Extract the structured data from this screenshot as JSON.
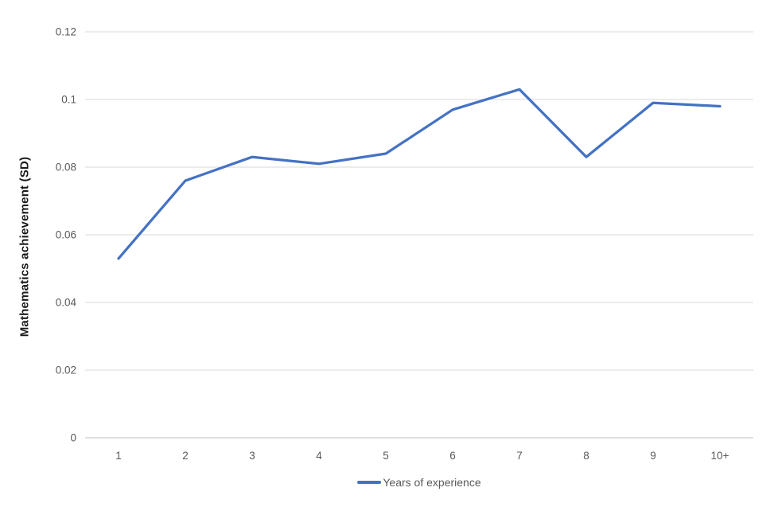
{
  "chart_data": {
    "type": "line",
    "categories": [
      "1",
      "2",
      "3",
      "4",
      "5",
      "6",
      "7",
      "8",
      "9",
      "10+"
    ],
    "series": [
      {
        "name": "Years of experience",
        "values": [
          0.053,
          0.076,
          0.083,
          0.081,
          0.084,
          0.097,
          0.103,
          0.083,
          0.099,
          0.098
        ],
        "color": "#4472C4"
      }
    ],
    "title": "",
    "xlabel": "",
    "ylabel": "Mathematics achievement (SD)",
    "ylim": [
      0,
      0.12
    ],
    "ytick_step": 0.02,
    "yticks": [
      "0",
      "0.02",
      "0.04",
      "0.06",
      "0.08",
      "0.1",
      "0.12"
    ],
    "grid": true,
    "legend_position": "bottom-center"
  },
  "colors": {
    "line": "#4472C4",
    "gridline": "#d9d9d9",
    "axis_line": "#bfbfbf",
    "tick_text": "#595959",
    "ylabel_text": "#1a1a1a"
  }
}
